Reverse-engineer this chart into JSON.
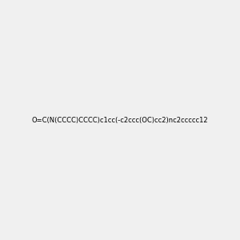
{
  "smiles": "O=C(N(CCCC)CCCC)c1cc(-c2ccc(OC)cc2)nc2ccccc12",
  "title": "",
  "background_color": "#f0f0f0",
  "bond_color": "#000000",
  "atom_colors": {
    "N": "#0000ff",
    "O": "#ff0000",
    "C": "#000000"
  },
  "figsize": [
    3.0,
    3.0
  ],
  "dpi": 100
}
